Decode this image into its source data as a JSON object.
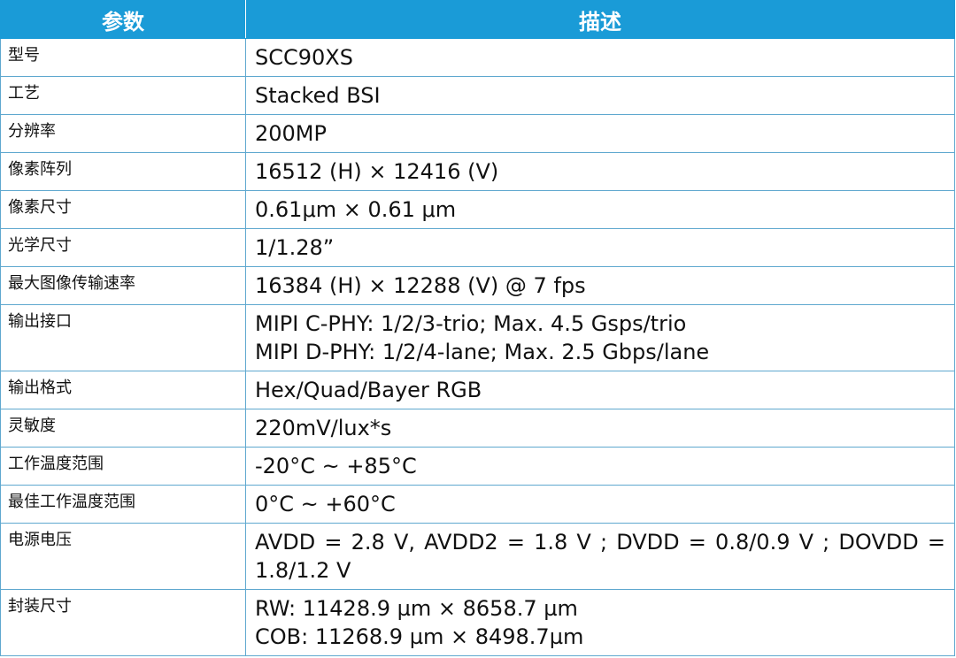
{
  "table": {
    "header": [
      "参数",
      "描述"
    ],
    "rows": [
      [
        "型号",
        "SCC90XS"
      ],
      [
        "工艺",
        "Stacked BSI"
      ],
      [
        "分辨率",
        "200MP"
      ],
      [
        "像素阵列",
        "16512 (H) × 12416 (V)"
      ],
      [
        "像素尺寸",
        "0.61μm × 0.61 μm"
      ],
      [
        "光学尺寸",
        "1/1.28”"
      ],
      [
        "最大图像传输速率",
        "16384 (H) × 12288 (V) @ 7 fps"
      ],
      [
        "输出接口",
        [
          "MIPI C-PHY: 1/2/3-trio; Max. 4.5 Gsps/trio",
          "MIPI D-PHY: 1/2/4-lane; Max. 2.5 Gbps/lane"
        ]
      ],
      [
        "输出格式",
        "Hex/Quad/Bayer RGB"
      ],
      [
        "灵敏度",
        "220mV/lux*s"
      ],
      [
        "工作温度范围",
        "-20°C ~ +85°C"
      ],
      [
        "最佳工作温度范围",
        "0°C ~ +60°C"
      ],
      [
        "电源电压",
        "AVDD = 2.8 V, AVDD2 = 1.8 V ; DVDD = 0.8/0.9 V ; DOVDD = 1.8/1.2 V"
      ],
      [
        "封装尺寸",
        [
          "RW: 11428.9 µm × 8658.7 µm",
          "COB: 11268.9 µm × 8498.7µm"
        ]
      ]
    ]
  }
}
